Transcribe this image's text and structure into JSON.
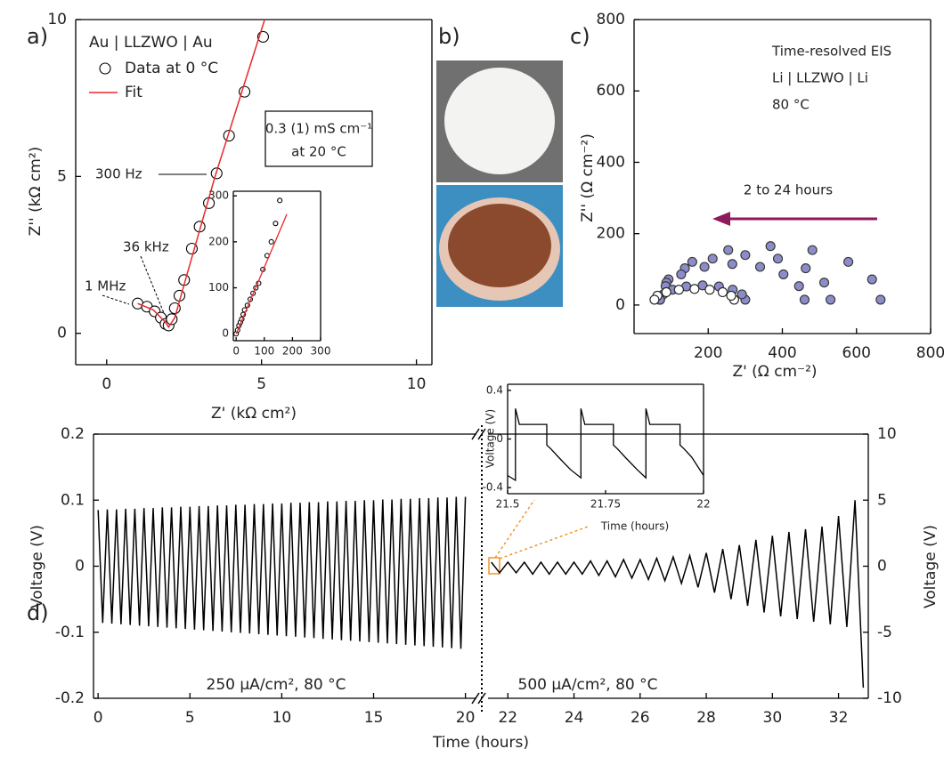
{
  "chart_data": [
    {
      "type": "scatter",
      "panel": "a)",
      "xlabel": "Z' (kΩ cm²)",
      "ylabel": "Z'' (kΩ cm²)",
      "xlim": [
        -1,
        10.5
      ],
      "ylim": [
        -1,
        10
      ],
      "xticks": [
        0,
        5,
        10
      ],
      "yticks": [
        0,
        5,
        10
      ],
      "legend_title": "Au | LLZWO | Au",
      "series": [
        {
          "name": "Data at 0 °C",
          "style": "markers",
          "color": "#000000",
          "fill": "#ffffff",
          "x": [
            1.0,
            1.3,
            1.55,
            1.75,
            1.9,
            2.0,
            2.1,
            2.2,
            2.35,
            2.5,
            2.75,
            3.0,
            3.3,
            3.55,
            3.95,
            4.45,
            5.05
          ],
          "y": [
            0.95,
            0.85,
            0.7,
            0.5,
            0.3,
            0.25,
            0.45,
            0.8,
            1.2,
            1.7,
            2.7,
            3.4,
            4.15,
            5.1,
            6.3,
            7.7,
            9.45
          ]
        },
        {
          "name": "Fit",
          "style": "line",
          "color": "#e8282b",
          "x": [
            1.0,
            1.5,
            1.9,
            2.0,
            2.2,
            2.6,
            3.5,
            5.1
          ],
          "y": [
            0.95,
            0.75,
            0.35,
            0.2,
            0.5,
            1.9,
            5.0,
            10
          ]
        }
      ],
      "annotations": [
        "1 MHz",
        "36 kHz",
        "300 Hz"
      ],
      "note": [
        "0.3 (1) mS cm⁻¹",
        "at 20 °C"
      ]
    },
    {
      "type": "scatter",
      "xlim": [
        -10,
        300
      ],
      "ylim": [
        -15,
        310
      ],
      "xticks": [
        0,
        100,
        200,
        300
      ],
      "yticks": [
        0,
        100,
        200,
        300
      ],
      "series": [
        {
          "style": "markers",
          "color": "#000000",
          "fill": "#ffffff",
          "x": [
            0,
            5,
            10,
            15,
            20,
            25,
            30,
            40,
            50,
            60,
            70,
            80,
            95,
            110,
            125,
            140,
            155
          ],
          "y": [
            0,
            8,
            18,
            25,
            32,
            42,
            52,
            62,
            75,
            88,
            100,
            110,
            140,
            170,
            200,
            240,
            290
          ]
        },
        {
          "style": "line",
          "color": "#e8282b",
          "x": [
            0,
            180
          ],
          "y": [
            0,
            260
          ]
        }
      ]
    },
    {
      "type": "image",
      "panel": "b)"
    },
    {
      "type": "scatter",
      "panel": "c)",
      "xlabel": "Z' (Ω cm⁻²)",
      "ylabel": "Z'' (Ω cm⁻²)",
      "xlim": [
        0,
        800
      ],
      "ylim": [
        -80,
        800
      ],
      "xticks": [
        200,
        400,
        600,
        800
      ],
      "yticks": [
        0,
        200,
        400,
        600,
        800
      ],
      "annotations": [
        "Time-resolved EIS",
        "Li | LLZWO | Li",
        "80 °C",
        "2 to 24 hours"
      ],
      "series": [
        {
          "style": "markers",
          "color": "#333333",
          "fill": "#8c8cc8",
          "x": [
            665,
            642,
            578,
            481,
            368,
            254,
            157,
            93,
            70
          ],
          "y": [
            15,
            72,
            121,
            154,
            165,
            154,
            121,
            72,
            15
          ]
        },
        {
          "style": "markers",
          "color": "#333333",
          "fill": "#8c8cc8",
          "x": [
            530,
            513,
            463,
            388,
            300,
            212,
            137,
            87,
            70
          ],
          "y": [
            15,
            63,
            103,
            130,
            140,
            130,
            103,
            63,
            15
          ]
        },
        {
          "style": "markers",
          "color": "#333333",
          "fill": "#8c8cc8",
          "x": [
            460,
            445,
            403,
            340,
            265,
            190,
            127,
            85,
            70
          ],
          "y": [
            15,
            53,
            86,
            107,
            115,
            107,
            86,
            53,
            15
          ]
        },
        {
          "style": "markers",
          "color": "#333333",
          "fill": "#8c8cc8",
          "x": [
            300,
            291,
            266,
            229,
            185,
            141,
            104,
            79,
            70
          ],
          "y": [
            15,
            30,
            43,
            52,
            55,
            52,
            43,
            30,
            15
          ]
        },
        {
          "style": "markers",
          "color": "#222222",
          "fill": "#ffffff",
          "x": [
            270,
            262,
            239,
            204,
            163,
            121,
            87,
            63,
            55
          ],
          "y": [
            15,
            26,
            36,
            43,
            45,
            43,
            36,
            26,
            15
          ]
        }
      ]
    },
    {
      "type": "line",
      "panel": "d)",
      "xlabel": "Time (hours)",
      "ylabel": "Voltage (V)",
      "xlim": [
        -0.25,
        20.6
      ],
      "ylim": [
        -0.2,
        0.2
      ],
      "xticks": [
        0,
        5,
        10,
        15,
        20
      ],
      "yticks": [
        0.2,
        0.1,
        0,
        -0.1,
        -0.2
      ],
      "annotations": [
        "250 µA/cm², 80 °C"
      ],
      "series": [
        {
          "style": "line",
          "color": "#000000",
          "x": [
            0,
            0.25,
            0.5,
            0.75,
            1,
            1.25,
            1.5,
            1.75,
            2,
            2.25,
            2.5,
            2.75,
            3,
            3.25,
            3.5,
            3.75,
            4,
            4.25,
            4.5,
            4.75,
            5,
            5.25,
            5.5,
            5.75,
            6,
            6.25,
            6.5,
            6.75,
            7,
            7.25,
            7.5,
            7.75,
            8,
            8.25,
            8.5,
            8.75,
            9,
            9.25,
            9.5,
            9.75,
            10,
            10.25,
            10.5,
            10.75,
            11,
            11.25,
            11.5,
            11.75,
            12,
            12.25,
            12.5,
            12.75,
            13,
            13.25,
            13.5,
            13.75,
            14,
            14.25,
            14.5,
            14.75,
            15,
            15.25,
            15.5,
            15.75,
            16,
            16.25,
            16.5,
            16.75,
            17,
            17.25,
            17.5,
            17.75,
            18,
            18.25,
            18.5,
            18.75,
            19,
            19.25,
            19.5,
            19.75,
            20
          ],
          "y": [
            0.085,
            -0.086,
            0.086,
            -0.087,
            0.086,
            -0.088,
            0.087,
            -0.089,
            0.087,
            -0.09,
            0.088,
            -0.091,
            0.088,
            -0.092,
            0.089,
            -0.093,
            0.089,
            -0.094,
            0.09,
            -0.095,
            0.09,
            -0.096,
            0.091,
            -0.097,
            0.091,
            -0.098,
            0.092,
            -0.099,
            0.092,
            -0.1,
            0.093,
            -0.101,
            0.093,
            -0.102,
            0.094,
            -0.103,
            0.094,
            -0.104,
            0.095,
            -0.105,
            0.095,
            -0.106,
            0.096,
            -0.107,
            0.096,
            -0.108,
            0.097,
            -0.109,
            0.097,
            -0.11,
            0.098,
            -0.111,
            0.098,
            -0.112,
            0.099,
            -0.113,
            0.099,
            -0.114,
            0.1,
            -0.115,
            0.1,
            -0.116,
            0.101,
            -0.117,
            0.101,
            -0.118,
            0.102,
            -0.119,
            0.102,
            -0.12,
            0.103,
            -0.121,
            0.103,
            -0.122,
            0.104,
            -0.123,
            0.104,
            -0.124,
            0.105,
            -0.125,
            0.105
          ]
        }
      ]
    },
    {
      "type": "line",
      "y2label": "Voltage (V)",
      "xlim": [
        21.4,
        32.9
      ],
      "y2lim": [
        -10,
        10
      ],
      "xticks": [
        22,
        24,
        26,
        28,
        30,
        32
      ],
      "y2ticks": [
        10,
        5,
        0,
        -5,
        -10
      ],
      "annotations": [
        "500 µA/cm², 80 °C"
      ],
      "series": [
        {
          "style": "line",
          "color": "#000000",
          "axis": "y2",
          "x": [
            21.5,
            21.75,
            22,
            22.25,
            22.5,
            22.75,
            23,
            23.25,
            23.5,
            23.75,
            24,
            24.25,
            24.5,
            24.75,
            25,
            25.25,
            25.5,
            25.75,
            26,
            26.25,
            26.5,
            26.75,
            27,
            27.25,
            27.5,
            27.75,
            28,
            28.25,
            28.5,
            28.75,
            29,
            29.25,
            29.5,
            29.75,
            30,
            30.25,
            30.5,
            30.75,
            31,
            31.25,
            31.5,
            31.75,
            32,
            32.25,
            32.5,
            32.75
          ],
          "y": [
            0.3,
            -0.5,
            0.3,
            -0.5,
            0.3,
            -0.6,
            0.3,
            -0.6,
            0.3,
            -0.6,
            0.3,
            -0.6,
            0.4,
            -0.7,
            0.4,
            -0.8,
            0.5,
            -0.9,
            0.5,
            -1.0,
            0.6,
            -1.1,
            0.7,
            -1.3,
            0.8,
            -1.6,
            1.0,
            -2.0,
            1.3,
            -2.5,
            1.6,
            -3.0,
            2.0,
            -3.5,
            2.3,
            -3.8,
            2.6,
            -4.0,
            2.8,
            -4.2,
            3.0,
            -4.4,
            3.8,
            -4.6,
            5.0,
            -9.2
          ]
        }
      ]
    },
    {
      "type": "line",
      "xlabel": "Time (hours)",
      "ylabel": "Voltage (V)",
      "xlim": [
        21.5,
        22
      ],
      "ylim": [
        -0.45,
        0.45
      ],
      "xticks": [
        21.5,
        21.75,
        22
      ],
      "yticks": [
        0.4,
        0,
        -0.4
      ],
      "series": [
        {
          "style": "line",
          "color": "#000000",
          "x": [
            21.5,
            21.52,
            21.52,
            21.53,
            21.6,
            21.6,
            21.61,
            21.63,
            21.66,
            21.687,
            21.687,
            21.697,
            21.77,
            21.77,
            21.78,
            21.8,
            21.83,
            21.853,
            21.853,
            21.863,
            21.94,
            21.94,
            21.95,
            21.97,
            22.0
          ],
          "y": [
            -0.3,
            -0.34,
            0.25,
            0.12,
            0.12,
            -0.05,
            -0.08,
            -0.15,
            -0.25,
            -0.32,
            0.25,
            0.12,
            0.12,
            -0.05,
            -0.08,
            -0.15,
            -0.25,
            -0.32,
            0.25,
            0.12,
            0.12,
            -0.05,
            -0.08,
            -0.15,
            -0.3
          ]
        }
      ]
    }
  ]
}
